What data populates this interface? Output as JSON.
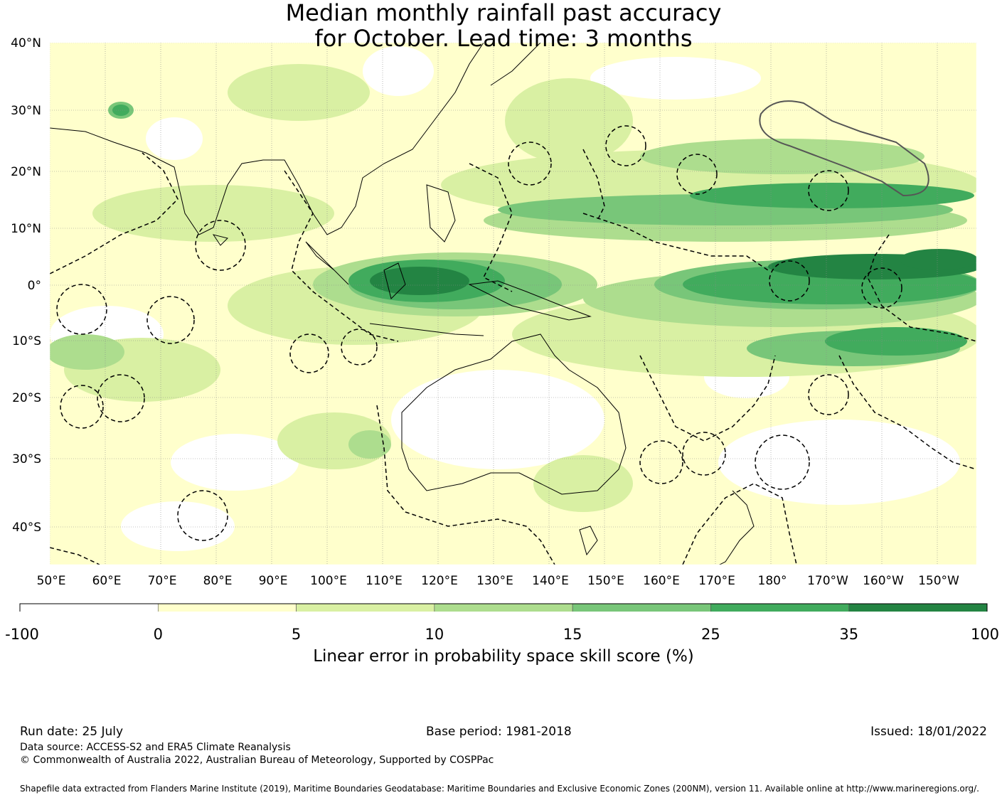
{
  "title": {
    "line1": "Median monthly rainfall past accuracy",
    "line2": "for October. Lead time: 3 months"
  },
  "map": {
    "lat_labels": [
      "40°N",
      "30°N",
      "20°N",
      "10°N",
      "0°",
      "10°S",
      "20°S",
      "30°S",
      "40°S"
    ],
    "lon_labels": [
      "50°E",
      "60°E",
      "70°E",
      "80°E",
      "90°E",
      "100°E",
      "110°E",
      "120°E",
      "130°E",
      "140°E",
      "150°E",
      "160°E",
      "170°E",
      "180°",
      "170°W",
      "160°W",
      "150°W"
    ],
    "colors": {
      "land_outline": "#000000",
      "eez_dash": "#000000",
      "grid": "#8a8a8a"
    }
  },
  "colorbar": {
    "boundaries": [
      "-100",
      "0",
      "5",
      "10",
      "15",
      "25",
      "35",
      "100"
    ],
    "colors": [
      "#ffffff",
      "#ffffcc",
      "#d9f0a3",
      "#addd8e",
      "#78c679",
      "#41ab5d",
      "#238443"
    ],
    "label": "Linear error in probability space skill score (%)"
  },
  "footer": {
    "run_date": "Run date: 25 July",
    "base_period": "Base period: 1981-2018",
    "issued": "Issued: 18/01/2022",
    "data_source": "Data source: ACCESS-S2 and ERA5 Climate Reanalysis",
    "copyright": "© Commonwealth of Australia 2022, Australian Bureau of Meteorology, Supported by COSPPac",
    "shapefile": "Shapefile data extracted from Flanders Marine Institute (2019), Maritime Boundaries Geodatabase: Maritime Boundaries and Exclusive Economic Zones (200NM), version 11. Available online at http://www.marineregions.org/."
  }
}
